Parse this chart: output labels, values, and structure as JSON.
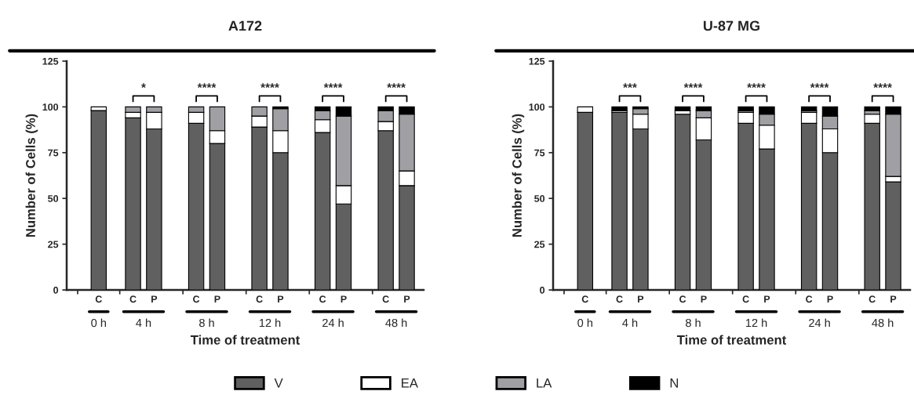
{
  "chart_data": [
    {
      "type": "bar",
      "title": "A172",
      "xlabel": "Time of treatment",
      "ylabel": "Number of Cells (%)",
      "stacked": true,
      "legend": "bottom",
      "categories": [
        "C",
        "C",
        "P",
        "C",
        "P",
        "C",
        "P",
        "C",
        "P",
        "C",
        "P"
      ],
      "series": [
        {
          "name": "V",
          "color": "#606060",
          "values": [
            98,
            94,
            88,
            91,
            80,
            89,
            75,
            86,
            47,
            87,
            57
          ]
        },
        {
          "name": "EA",
          "color": "#ffffff",
          "values": [
            2,
            3,
            9,
            6,
            7,
            6,
            12,
            7,
            10,
            5,
            8
          ]
        },
        {
          "name": "LA",
          "color": "#a0a0a4",
          "values": [
            0,
            3,
            3,
            3,
            13,
            5,
            12,
            5,
            38,
            6,
            31
          ]
        },
        {
          "name": "N",
          "color": "#000000",
          "values": [
            0,
            0,
            0,
            0,
            0,
            0,
            1,
            2,
            5,
            2,
            4
          ]
        }
      ],
      "ylim": [
        0,
        125
      ],
      "yticks": [
        0,
        25,
        50,
        75,
        100,
        125
      ],
      "annotations": [
        "0 h",
        "4 h",
        "8 h",
        "12 h",
        "24 h",
        "48 h",
        "*",
        "****",
        "****",
        "****",
        "****"
      ]
    },
    {
      "type": "bar",
      "title": "U-87 MG",
      "xlabel": "Time of treatment",
      "ylabel": "Number of Cells (%)",
      "stacked": true,
      "legend": "bottom",
      "categories": [
        "C",
        "C",
        "P",
        "C",
        "P",
        "C",
        "P",
        "C",
        "P",
        "C",
        "P"
      ],
      "series": [
        {
          "name": "V",
          "color": "#606060",
          "values": [
            97,
            97,
            88,
            96,
            82,
            91,
            77,
            91,
            75,
            91,
            59
          ]
        },
        {
          "name": "EA",
          "color": "#ffffff",
          "values": [
            3,
            1,
            8,
            2,
            12,
            6,
            13,
            6,
            13,
            5,
            3
          ]
        },
        {
          "name": "LA",
          "color": "#a0a0a4",
          "values": [
            0,
            0,
            3,
            0,
            4,
            1,
            6,
            1,
            7,
            2,
            34
          ]
        },
        {
          "name": "N",
          "color": "#000000",
          "values": [
            0,
            2,
            1,
            2,
            2,
            2,
            4,
            2,
            5,
            2,
            4
          ]
        }
      ],
      "ylim": [
        0,
        125
      ],
      "yticks": [
        0,
        25,
        50,
        75,
        100,
        125
      ],
      "annotations": [
        "0 h",
        "4 h",
        "8 h",
        "12 h",
        "24 h",
        "48 h",
        "***",
        "****",
        "****",
        "****",
        "****"
      ]
    }
  ]
}
